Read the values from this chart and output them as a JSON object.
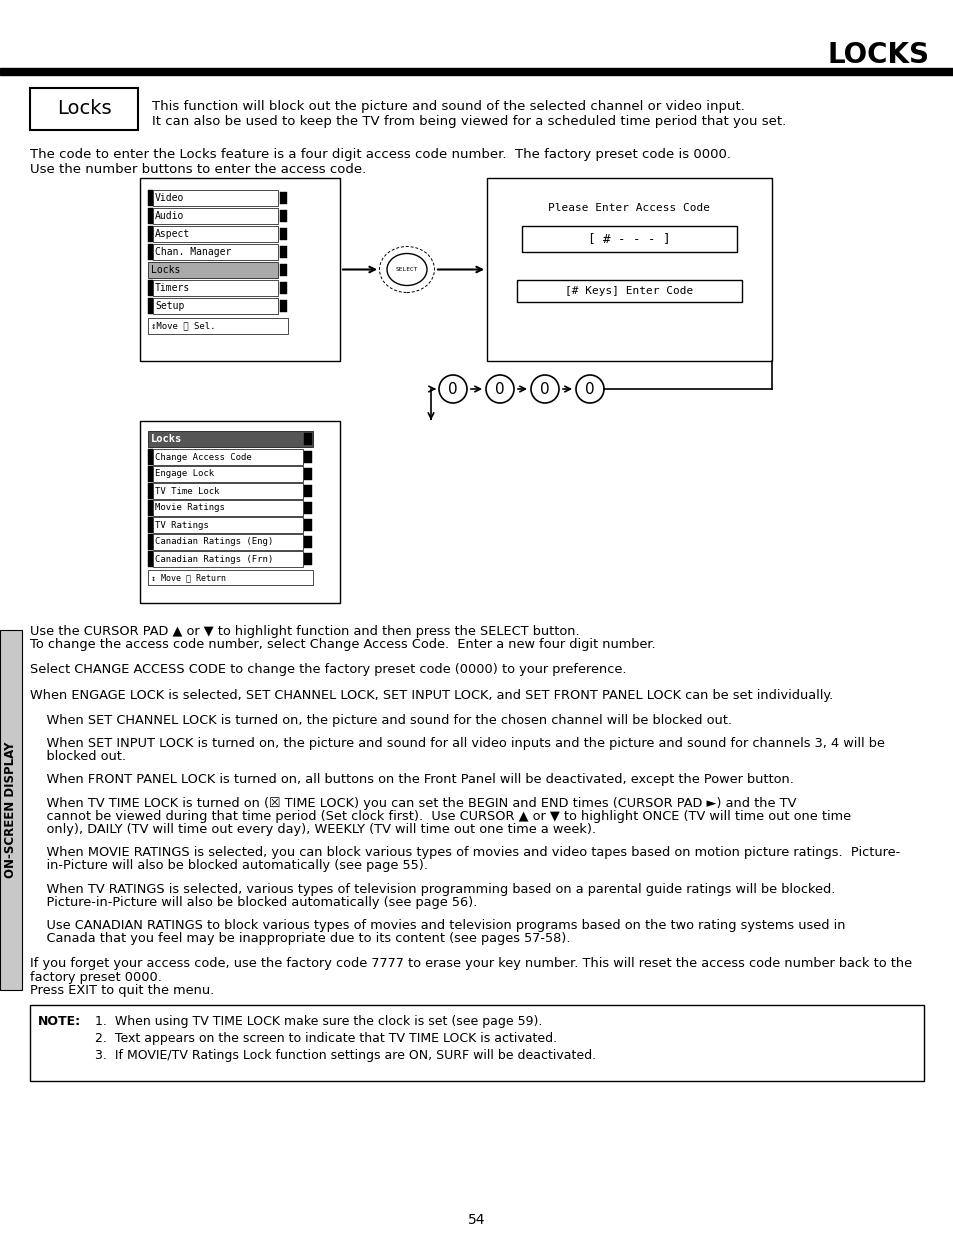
{
  "title": "LOCKS",
  "page_number": "54",
  "sidebar_text": "ON-SCREEN DISPLAY",
  "locks_box_label": "Locks",
  "locks_box_desc1": "This function will block out the picture and sound of the selected channel or video input.",
  "locks_box_desc2": "It can also be used to keep the TV from being viewed for a scheduled time period that you set.",
  "intro_text1": "The code to enter the Locks feature is a four digit access code number.  The factory preset code is 0000.",
  "intro_text2": "Use the number buttons to enter the access code.",
  "menu1_items": [
    "Video",
    "Audio",
    "Aspect",
    "Chan. Manager",
    "Locks",
    "Timers",
    "Setup"
  ],
  "menu1_footer": "↕Move Ⓕ Sel.",
  "menu1_highlighted": "Locks",
  "access_code_title": "Please Enter Access Code",
  "access_code_display": "[ # - - - ]",
  "access_code_hint": "[# Keys] Enter Code",
  "digits": [
    "0",
    "0",
    "0",
    "0"
  ],
  "menu2_title": "Locks",
  "menu2_items": [
    "Change Access Code",
    "Engage Lock",
    "TV Time Lock",
    "Movie Ratings",
    "TV Ratings",
    "Canadian Ratings (Eng)",
    "Canadian Ratings (Frn)"
  ],
  "menu2_footer": "↕ Move Ⓕ Return",
  "body_paragraphs": [
    "Use the CURSOR PAD ▲ or ▼ to highlight function and then press the SELECT button.\nTo change the access code number, select Change Access Code.  Enter a new four digit number.",
    "Select CHANGE ACCESS CODE to change the factory preset code (0000) to your preference.",
    "When ENGAGE LOCK is selected, SET CHANNEL LOCK, SET INPUT LOCK, and SET FRONT PANEL LOCK can be set individually.",
    "    When SET CHANNEL LOCK is turned on, the picture and sound for the chosen channel will be blocked out.",
    "    When SET INPUT LOCK is turned on, the picture and sound for all video inputs and the picture and sound for channels 3, 4 will be\n    blocked out.",
    "    When FRONT PANEL LOCK is turned on, all buttons on the Front Panel will be deactivated, except the Power button.",
    "    When TV TIME LOCK is turned on (☒ TIME LOCK) you can set the BEGIN and END times (CURSOR PAD ►) and the TV\n    cannot be viewed during that time period (Set clock first).  Use CURSOR ▲ or ▼ to highlight ONCE (TV will time out one time\n    only), DAILY (TV will time out every day), WEEKLY (TV will time out one time a week).",
    "    When MOVIE RATINGS is selected, you can block various types of movies and video tapes based on motion picture ratings.  Picture-\n    in-Picture will also be blocked automatically (see page 55).",
    "    When TV RATINGS is selected, various types of television programming based on a parental guide ratings will be blocked.\n    Picture-in-Picture will also be blocked automatically (see page 56).",
    "    Use CANADIAN RATINGS to block various types of movies and television programs based on the two rating systems used in\n    Canada that you feel may be inappropriate due to its content (see pages 57-58).",
    "If you forget your access code, use the factory code 7777 to erase your key number. This will reset the access code number back to the\nfactory preset 0000.\nPress EXIT to quit the menu."
  ],
  "note_label": "NOTE:",
  "note_items": [
    "1.  When using TV TIME LOCK make sure the clock is set (see page 59).",
    "2.  Text appears on the screen to indicate that TV TIME LOCK is activated.",
    "3.  If MOVIE/TV Ratings Lock function settings are ON, SURF will be deactivated."
  ]
}
